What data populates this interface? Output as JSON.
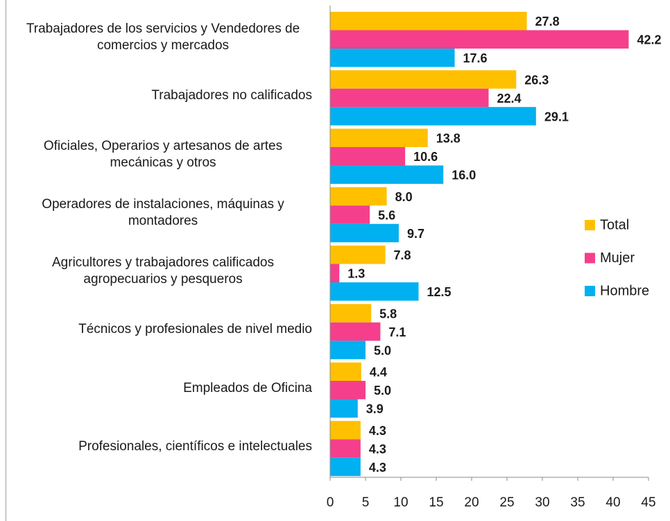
{
  "chart_data": {
    "type": "bar",
    "orientation": "horizontal",
    "categories": [
      "Trabajadores de los servicios y Vendedores de comercios y mercados",
      "Trabajadores no calificados",
      "Oficiales, Operarios y artesanos de artes mecánicas y otros",
      "Operadores de instalaciones, máquinas y montadores",
      "Agricultores y trabajadores calificados agropecuarios y pesqueros",
      "Técnicos y profesionales de nivel medio",
      "Empleados de Oficina",
      "Profesionales, científicos e intelectuales"
    ],
    "series": [
      {
        "name": "Total",
        "color": "#FFC000",
        "values": [
          27.8,
          26.3,
          13.8,
          8.0,
          7.8,
          5.8,
          4.4,
          4.3
        ],
        "value_labels": [
          "27.8",
          "26.3",
          "13.8",
          "8.0",
          "7.8",
          "5.8",
          "4.4",
          "4.3"
        ]
      },
      {
        "name": "Mujer",
        "color": "#F53F8C",
        "values": [
          42.2,
          22.4,
          10.6,
          5.6,
          1.3,
          7.1,
          5.0,
          4.3
        ],
        "value_labels": [
          "42.2",
          "22.4",
          "10.6",
          "5.6",
          "1.3",
          "7.1",
          "5.0",
          "4.3"
        ]
      },
      {
        "name": "Hombre",
        "color": "#00B0F0",
        "values": [
          17.6,
          29.1,
          16.0,
          9.7,
          12.5,
          5.0,
          3.9,
          4.3
        ],
        "value_labels": [
          "17.6",
          "29.1",
          "16.0",
          "9.7",
          "12.5",
          "5.0",
          "3.9",
          "4.3"
        ]
      }
    ],
    "xlim": [
      0,
      45
    ],
    "xticks": [
      0,
      5,
      10,
      15,
      20,
      25,
      30,
      35,
      40,
      45
    ],
    "legend": "right"
  }
}
